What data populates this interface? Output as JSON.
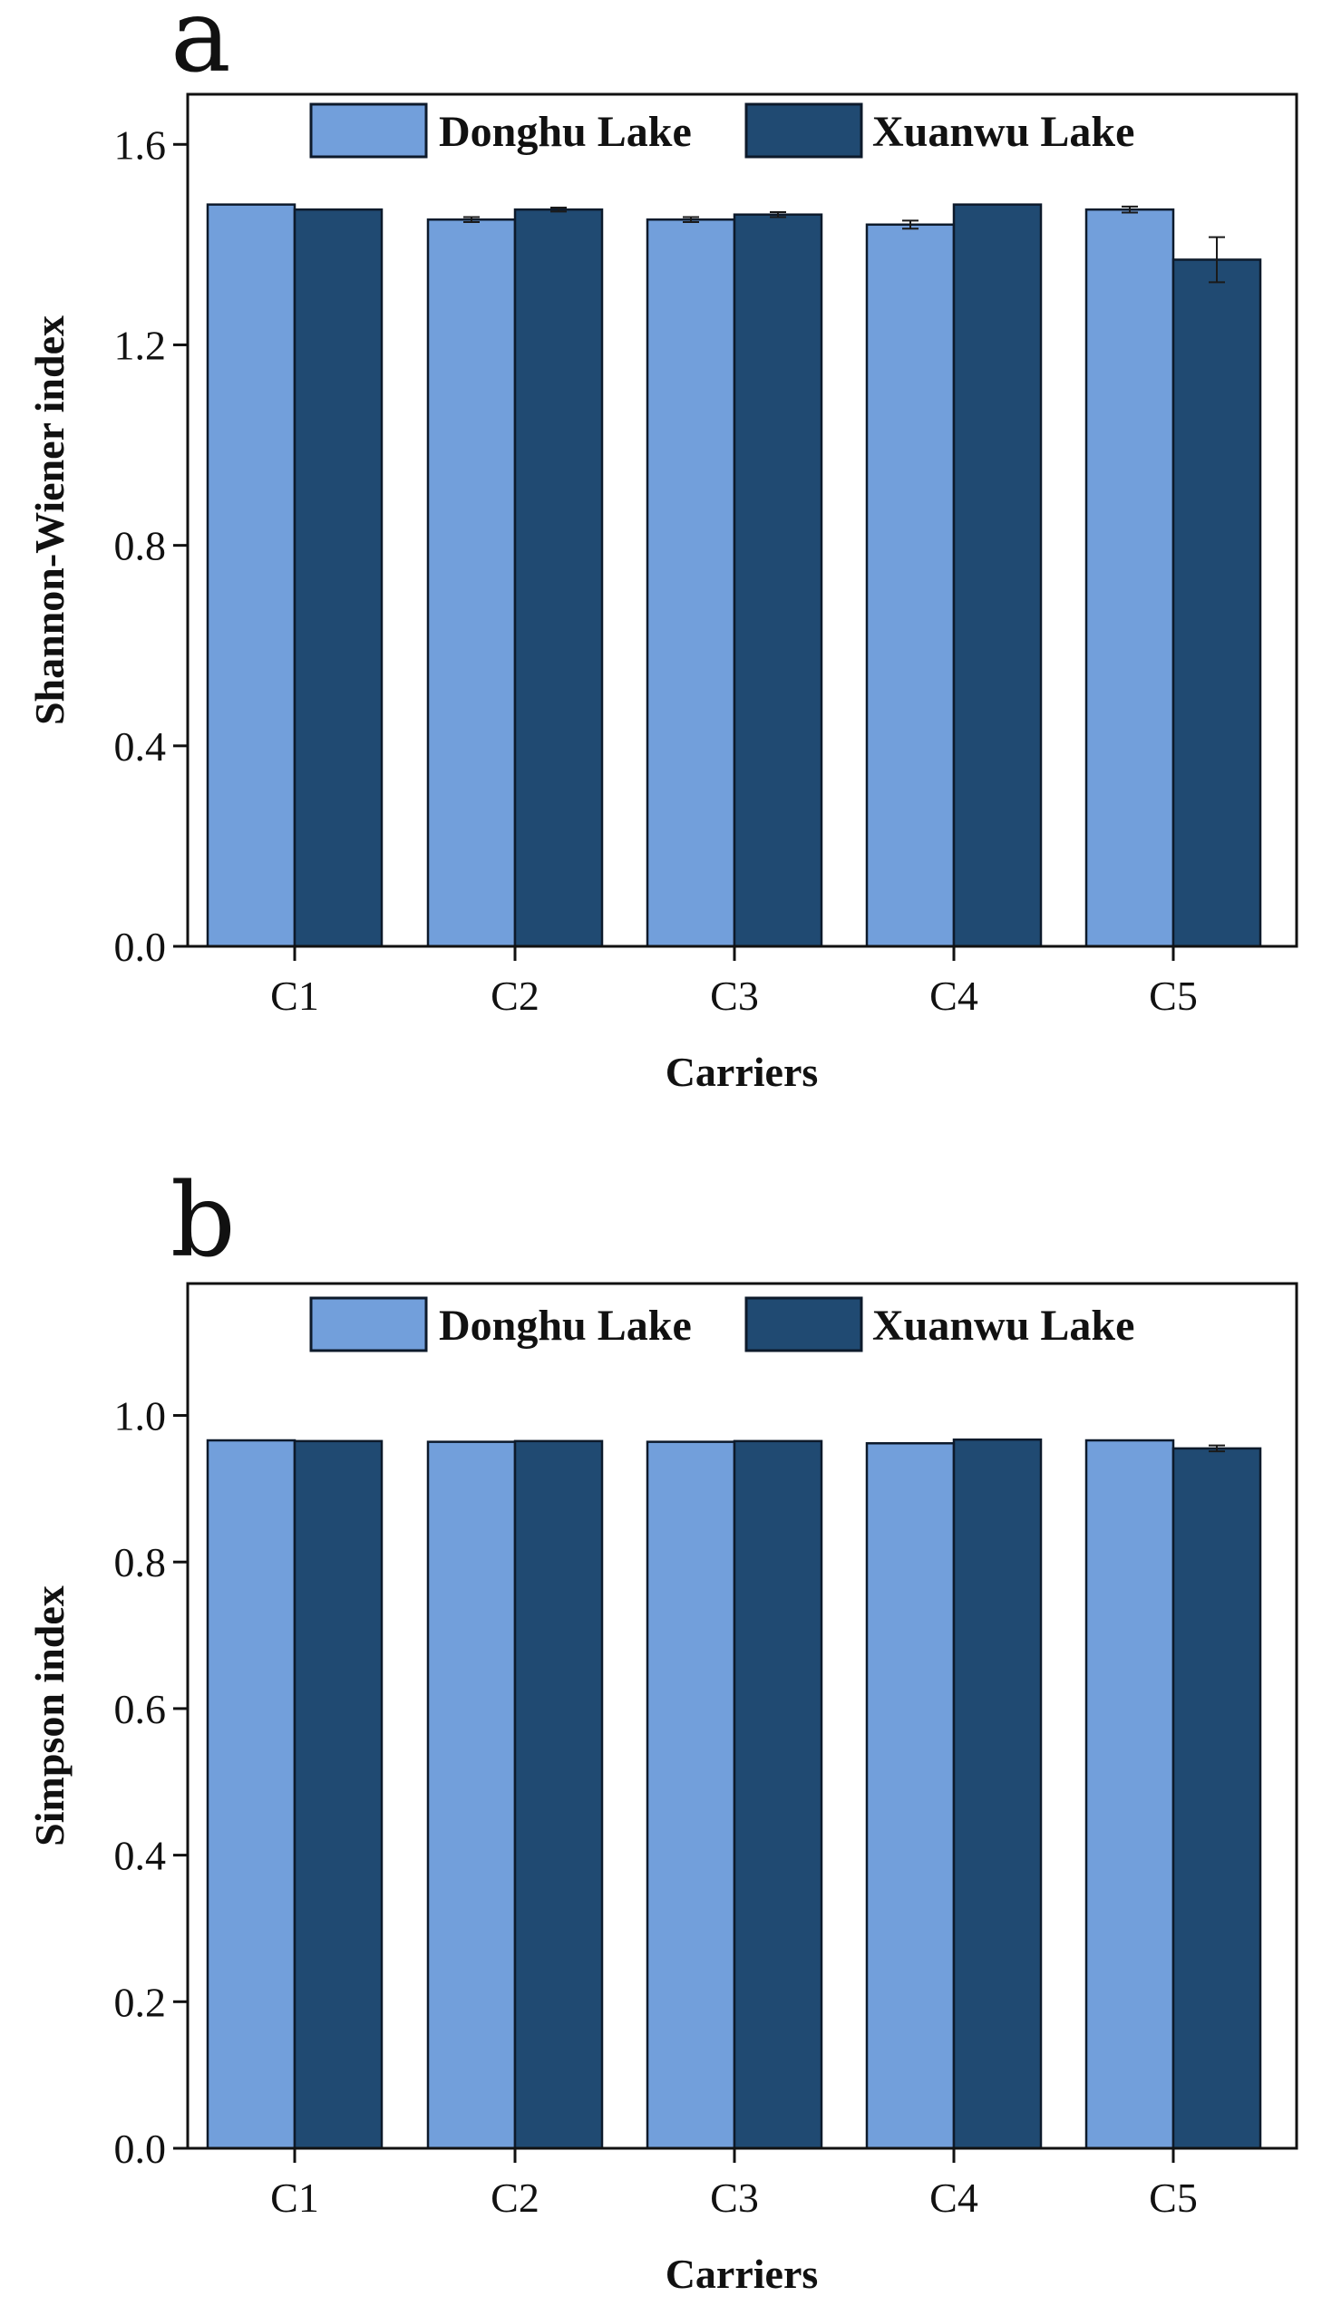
{
  "colors": {
    "donghu": "#729fdb",
    "xuanwu": "#204a72",
    "axis": "#111111",
    "bar_edge": "#0d1a2b",
    "background": "#ffffff"
  },
  "chart_data": [
    {
      "panel": "a",
      "type": "bar",
      "title": "",
      "xlabel": "Carriers",
      "ylabel": "Shannon-Wiener index",
      "ylim": [
        0,
        1.7
      ],
      "yticks": [
        "0.0",
        "0.4",
        "0.8",
        "1.2",
        "1.6"
      ],
      "ytick_values": [
        0,
        0.4,
        0.8,
        1.2,
        1.6
      ],
      "grid": false,
      "legend_position": "top",
      "categories": [
        "C1",
        "C2",
        "C3",
        "C4",
        "C5"
      ],
      "series": [
        {
          "name": "Donghu Lake",
          "values": [
            1.48,
            1.45,
            1.45,
            1.44,
            1.47
          ],
          "errors": [
            0.0,
            0.005,
            0.005,
            0.008,
            0.006
          ]
        },
        {
          "name": "Xuanwu Lake",
          "values": [
            1.47,
            1.47,
            1.46,
            1.48,
            1.37
          ],
          "errors": [
            0.0,
            0.004,
            0.005,
            0.0,
            0.045
          ]
        }
      ]
    },
    {
      "panel": "b",
      "type": "bar",
      "title": "",
      "xlabel": "Carriers",
      "ylabel": "Simpson index",
      "ylim": [
        0,
        1.18
      ],
      "yticks": [
        "0.0",
        "0.2",
        "0.4",
        "0.6",
        "0.8",
        "1.0"
      ],
      "ytick_values": [
        0,
        0.2,
        0.4,
        0.6,
        0.8,
        1.0
      ],
      "grid": false,
      "legend_position": "top",
      "categories": [
        "C1",
        "C2",
        "C3",
        "C4",
        "C5"
      ],
      "series": [
        {
          "name": "Donghu Lake",
          "values": [
            0.966,
            0.964,
            0.964,
            0.962,
            0.966
          ],
          "errors": [
            0.0,
            0.0,
            0.0,
            0.0,
            0.0
          ]
        },
        {
          "name": "Xuanwu Lake",
          "values": [
            0.965,
            0.965,
            0.965,
            0.967,
            0.955
          ],
          "errors": [
            0.0,
            0.0,
            0.0,
            0.0,
            0.004
          ]
        }
      ]
    }
  ]
}
